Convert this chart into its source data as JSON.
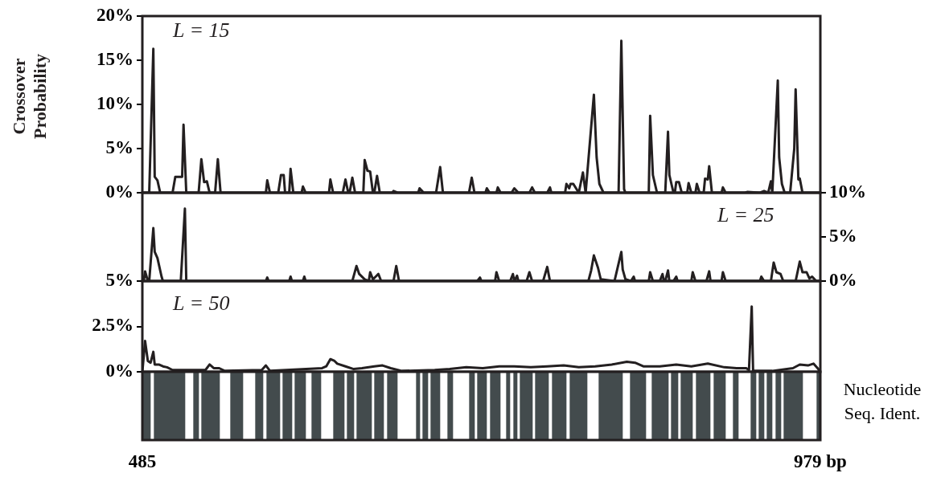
{
  "chart_data": [
    {
      "type": "line",
      "ylabel": "Crossover Probability",
      "annotations": [
        "L = 15"
      ],
      "xlim": [
        485,
        979
      ],
      "ylim": [
        0,
        20
      ],
      "yticks": [
        {
          "value": 0,
          "label": "0%"
        },
        {
          "value": 5,
          "label": "5%"
        },
        {
          "value": 10,
          "label": "10%"
        },
        {
          "value": 15,
          "label": "15%"
        },
        {
          "value": 20,
          "label": "20%"
        }
      ],
      "tick_labels": "y",
      "series": [
        {
          "color": "#231f20",
          "x": [
            485,
            490,
            493,
            494,
            496,
            498,
            507,
            509,
            511,
            514,
            515,
            517,
            526,
            528,
            530,
            532,
            534,
            538,
            540,
            542,
            575,
            576,
            578,
            584,
            586,
            588,
            589,
            592,
            593,
            595,
            601,
            602,
            604,
            621,
            622,
            624,
            631,
            633,
            635,
            636,
            638,
            640,
            646,
            647,
            649,
            651,
            653,
            654,
            656,
            658,
            667,
            668,
            671,
            686,
            687,
            690,
            699,
            702,
            704,
            723,
            725,
            727,
            735,
            736,
            738,
            743,
            744,
            746,
            754,
            756,
            759,
            767,
            769,
            771,
            780,
            782,
            783,
            793,
            794,
            796,
            797,
            799,
            803,
            806,
            808,
            814,
            816,
            818,
            821,
            832,
            834,
            836,
            837,
            854,
            855,
            857,
            860,
            866,
            868,
            869,
            872,
            873,
            874,
            876,
            878,
            882,
            883,
            885,
            888,
            889,
            891,
            894,
            895,
            897,
            898,
            900,
            907,
            908,
            910,
            924,
            926,
            935,
            938,
            941,
            943,
            944,
            948,
            949,
            951,
            953,
            957,
            960,
            961,
            963,
            964,
            966,
            979
          ],
          "values": [
            0,
            0,
            16.3,
            1.8,
            1.4,
            0,
            0,
            1.8,
            1.8,
            1.8,
            7.7,
            0,
            0,
            3.8,
            1.2,
            1.3,
            0,
            0,
            3.8,
            0,
            0,
            1.4,
            0,
            0,
            2,
            2,
            0,
            0,
            2.7,
            0,
            0,
            0.7,
            0,
            0,
            1.5,
            0,
            0,
            1.5,
            0,
            0,
            1.7,
            0,
            0,
            3.7,
            2.5,
            2.4,
            0,
            0,
            1.9,
            0,
            0,
            0.2,
            0,
            0,
            0.5,
            0,
            0,
            2.9,
            0,
            0,
            1.7,
            0,
            0,
            0.5,
            0,
            0,
            0.6,
            0,
            0,
            0.5,
            0,
            0,
            0.6,
            0,
            0,
            0.6,
            0,
            0,
            1,
            0.5,
            1,
            1,
            0,
            2.3,
            0,
            11.1,
            4,
            1,
            0,
            0,
            17.2,
            0.4,
            0,
            0,
            8.7,
            2,
            0,
            0,
            6.9,
            2,
            0,
            0,
            1.2,
            1.2,
            0,
            0,
            1.1,
            0,
            0,
            1,
            0,
            0,
            1.6,
            1.5,
            3,
            0,
            0,
            0.6,
            0,
            0,
            0.1,
            0,
            0.2,
            0,
            1.3,
            0,
            12.7,
            4,
            1,
            0,
            0,
            5,
            11.7,
            1.5,
            1.6,
            0,
            0
          ]
        }
      ]
    },
    {
      "type": "line",
      "annotations": [
        "L = 25"
      ],
      "xlim": [
        485,
        979
      ],
      "y2lim": [
        0,
        10
      ],
      "y2ticks": [
        {
          "value": 0,
          "label": "0%"
        },
        {
          "value": 5,
          "label": "5%"
        },
        {
          "value": 10,
          "label": "10%"
        }
      ],
      "tick_labels": "y",
      "series": [
        {
          "color": "#231f20",
          "axis": "y2",
          "x": [
            485,
            486,
            487,
            489,
            490,
            493,
            494,
            496,
            499,
            500,
            513,
            516,
            517,
            575,
            576,
            577,
            592,
            593,
            594,
            602,
            603,
            604,
            638,
            641,
            643,
            647,
            650,
            651,
            653,
            655,
            657,
            659,
            668,
            670,
            672,
            729,
            731,
            732,
            742,
            743,
            745,
            753,
            755,
            756,
            758,
            759,
            765,
            767,
            769,
            777,
            780,
            782,
            810,
            812,
            814,
            817,
            819,
            829,
            834,
            835,
            837,
            841,
            843,
            844,
            854,
            855,
            857,
            862,
            864,
            865,
            866,
            868,
            869,
            872,
            874,
            875,
            885,
            886,
            888,
            896,
            898,
            899,
            907,
            908,
            910,
            935,
            936,
            938,
            943,
            945,
            947,
            950,
            952,
            961,
            964,
            966,
            969,
            971,
            973,
            976,
            979
          ],
          "values": [
            0,
            0,
            1.1,
            0,
            0,
            6,
            3.3,
            2.6,
            0.5,
            0,
            0,
            8.2,
            0,
            0,
            0.4,
            0,
            0,
            0.5,
            0,
            0,
            0.5,
            0,
            0,
            1.7,
            0.8,
            0.2,
            0,
            1,
            0.2,
            0.5,
            0.8,
            0,
            0,
            1.7,
            0,
            0,
            0.4,
            0,
            0,
            1,
            0,
            0,
            0.8,
            0,
            0.6,
            0,
            0,
            1,
            0,
            0,
            1.6,
            0,
            0,
            1.2,
            2.9,
            1.5,
            0.2,
            0,
            3.3,
            1.3,
            0.2,
            0,
            0.5,
            0,
            0,
            1,
            0,
            0,
            0.8,
            0,
            0,
            1.2,
            0,
            0,
            0.5,
            0,
            0,
            1,
            0,
            0,
            1.1,
            0,
            0,
            1,
            0,
            0,
            0.5,
            0,
            0,
            2.1,
            1,
            0.8,
            0,
            0,
            2.2,
            1,
            1,
            0.3,
            0.5,
            0,
            0
          ]
        }
      ]
    },
    {
      "type": "line",
      "annotations": [
        "L = 50"
      ],
      "xlim": [
        485,
        979
      ],
      "ylim": [
        0,
        5
      ],
      "yticks": [
        {
          "value": 0,
          "label": "0%"
        },
        {
          "value": 2.5,
          "label": "2.5%"
        },
        {
          "value": 5,
          "label": "5%"
        }
      ],
      "tick_labels": "y",
      "series": [
        {
          "color": "#231f20",
          "x": [
            485,
            487,
            489,
            491,
            493,
            494,
            497,
            500,
            503,
            507,
            531,
            534,
            537,
            541,
            545,
            572,
            575,
            578,
            616,
            619,
            622,
            625,
            627,
            633,
            639,
            645,
            654,
            660,
            666,
            674,
            698,
            709,
            721,
            733,
            745,
            756,
            768,
            780,
            792,
            803,
            815,
            827,
            838,
            844,
            850,
            862,
            874,
            885,
            897,
            909,
            918,
            925,
            927,
            929,
            930,
            944,
            959,
            964,
            970,
            974,
            977,
            979
          ],
          "values": [
            0,
            1.7,
            0.6,
            0.5,
            1.1,
            0.4,
            0.4,
            0.3,
            0.25,
            0.1,
            0.1,
            0.4,
            0.2,
            0.2,
            0.05,
            0.1,
            0.35,
            0.05,
            0.2,
            0.3,
            0.7,
            0.6,
            0.45,
            0.3,
            0.15,
            0.2,
            0.3,
            0.35,
            0.2,
            0.05,
            0.1,
            0.15,
            0.25,
            0.2,
            0.3,
            0.3,
            0.25,
            0.3,
            0.35,
            0.25,
            0.3,
            0.4,
            0.55,
            0.5,
            0.3,
            0.3,
            0.4,
            0.3,
            0.45,
            0.25,
            0.2,
            0.2,
            0.1,
            3.6,
            0.05,
            0.05,
            0.2,
            0.4,
            0.35,
            0.45,
            0.2,
            0
          ]
        }
      ]
    },
    {
      "type": "bar",
      "orientation": "horizontal",
      "categories": [
        null
      ],
      "y2label": "Nucleotide Seq. Ident.",
      "xlim": [
        485,
        979
      ],
      "xticks": [
        {
          "value": 485,
          "label": "485"
        },
        {
          "value": 979,
          "label": "979 bp"
        }
      ],
      "tick_labels": "x",
      "series": [
        {
          "color": "#434b4d",
          "base": [
            485
          ],
          "values": [
            6
          ]
        },
        {
          "color": "#ffffff",
          "base": [
            491
          ],
          "values": [
            2
          ]
        },
        {
          "color": "#434b4d",
          "base": [
            493
          ],
          "values": [
            23
          ]
        },
        {
          "color": "#ffffff",
          "base": [
            516
          ],
          "values": [
            6
          ]
        },
        {
          "color": "#434b4d",
          "base": [
            522
          ],
          "values": [
            4
          ]
        },
        {
          "color": "#ffffff",
          "base": [
            526
          ],
          "values": [
            2
          ]
        },
        {
          "color": "#434b4d",
          "base": [
            528
          ],
          "values": [
            13
          ]
        },
        {
          "color": "#ffffff",
          "base": [
            541
          ],
          "values": [
            8
          ]
        },
        {
          "color": "#434b4d",
          "base": [
            549
          ],
          "values": [
            9
          ]
        },
        {
          "color": "#ffffff",
          "base": [
            558
          ],
          "values": [
            9
          ]
        },
        {
          "color": "#434b4d",
          "base": [
            567
          ],
          "values": [
            6
          ]
        },
        {
          "color": "#ffffff",
          "base": [
            573
          ],
          "values": [
            2
          ]
        },
        {
          "color": "#434b4d",
          "base": [
            575
          ],
          "values": [
            10
          ]
        },
        {
          "color": "#ffffff",
          "base": [
            585
          ],
          "values": [
            2
          ]
        },
        {
          "color": "#434b4d",
          "base": [
            587
          ],
          "values": [
            7
          ]
        },
        {
          "color": "#ffffff",
          "base": [
            594
          ],
          "values": [
            2
          ]
        },
        {
          "color": "#434b4d",
          "base": [
            596
          ],
          "values": [
            8
          ]
        },
        {
          "color": "#ffffff",
          "base": [
            604
          ],
          "values": [
            4
          ]
        },
        {
          "color": "#434b4d",
          "base": [
            608
          ],
          "values": [
            7
          ]
        },
        {
          "color": "#ffffff",
          "base": [
            615
          ],
          "values": [
            9
          ]
        },
        {
          "color": "#434b4d",
          "base": [
            624
          ],
          "values": [
            8
          ]
        },
        {
          "color": "#ffffff",
          "base": [
            632
          ],
          "values": [
            2
          ]
        },
        {
          "color": "#434b4d",
          "base": [
            634
          ],
          "values": [
            5
          ]
        },
        {
          "color": "#ffffff",
          "base": [
            639
          ],
          "values": [
            2
          ]
        },
        {
          "color": "#434b4d",
          "base": [
            641
          ],
          "values": [
            11
          ]
        },
        {
          "color": "#ffffff",
          "base": [
            652
          ],
          "values": [
            2
          ]
        },
        {
          "color": "#434b4d",
          "base": [
            654
          ],
          "values": [
            7
          ]
        },
        {
          "color": "#ffffff",
          "base": [
            661
          ],
          "values": [
            2
          ]
        },
        {
          "color": "#434b4d",
          "base": [
            663
          ],
          "values": [
            8
          ]
        },
        {
          "color": "#ffffff",
          "base": [
            671
          ],
          "values": [
            13
          ]
        },
        {
          "color": "#434b4d",
          "base": [
            684
          ],
          "values": [
            3
          ]
        },
        {
          "color": "#ffffff",
          "base": [
            687
          ],
          "values": [
            2
          ]
        },
        {
          "color": "#434b4d",
          "base": [
            689
          ],
          "values": [
            4
          ]
        },
        {
          "color": "#ffffff",
          "base": [
            693
          ],
          "values": [
            2
          ]
        },
        {
          "color": "#434b4d",
          "base": [
            695
          ],
          "values": [
            7
          ]
        },
        {
          "color": "#ffffff",
          "base": [
            702
          ],
          "values": [
            5
          ]
        },
        {
          "color": "#434b4d",
          "base": [
            707
          ],
          "values": [
            4
          ]
        },
        {
          "color": "#ffffff",
          "base": [
            711
          ],
          "values": [
            12
          ]
        },
        {
          "color": "#434b4d",
          "base": [
            723
          ],
          "values": [
            4
          ]
        },
        {
          "color": "#ffffff",
          "base": [
            727
          ],
          "values": [
            2
          ]
        },
        {
          "color": "#434b4d",
          "base": [
            729
          ],
          "values": [
            7
          ]
        },
        {
          "color": "#ffffff",
          "base": [
            736
          ],
          "values": [
            2
          ]
        },
        {
          "color": "#434b4d",
          "base": [
            738
          ],
          "values": [
            8
          ]
        },
        {
          "color": "#ffffff",
          "base": [
            746
          ],
          "values": [
            4
          ]
        },
        {
          "color": "#434b4d",
          "base": [
            750
          ],
          "values": [
            3
          ]
        },
        {
          "color": "#ffffff",
          "base": [
            753
          ],
          "values": [
            2
          ]
        },
        {
          "color": "#434b4d",
          "base": [
            755
          ],
          "values": [
            3
          ]
        },
        {
          "color": "#ffffff",
          "base": [
            758
          ],
          "values": [
            2
          ]
        },
        {
          "color": "#434b4d",
          "base": [
            760
          ],
          "values": [
            9
          ]
        },
        {
          "color": "#ffffff",
          "base": [
            769
          ],
          "values": [
            2
          ]
        },
        {
          "color": "#434b4d",
          "base": [
            771
          ],
          "values": [
            10
          ]
        },
        {
          "color": "#ffffff",
          "base": [
            781
          ],
          "values": [
            2
          ]
        },
        {
          "color": "#434b4d",
          "base": [
            783
          ],
          "values": [
            11
          ]
        },
        {
          "color": "#ffffff",
          "base": [
            794
          ],
          "values": [
            2
          ]
        },
        {
          "color": "#434b4d",
          "base": [
            796
          ],
          "values": [
            13
          ]
        },
        {
          "color": "#ffffff",
          "base": [
            809
          ],
          "values": [
            8
          ]
        },
        {
          "color": "#434b4d",
          "base": [
            817
          ],
          "values": [
            18
          ]
        },
        {
          "color": "#ffffff",
          "base": [
            835
          ],
          "values": [
            5
          ]
        },
        {
          "color": "#434b4d",
          "base": [
            840
          ],
          "values": [
            12
          ]
        },
        {
          "color": "#ffffff",
          "base": [
            852
          ],
          "values": [
            4
          ]
        },
        {
          "color": "#434b4d",
          "base": [
            856
          ],
          "values": [
            12
          ]
        },
        {
          "color": "#ffffff",
          "base": [
            868
          ],
          "values": [
            2
          ]
        },
        {
          "color": "#434b4d",
          "base": [
            870
          ],
          "values": [
            5
          ]
        },
        {
          "color": "#ffffff",
          "base": [
            875
          ],
          "values": [
            2
          ]
        },
        {
          "color": "#434b4d",
          "base": [
            877
          ],
          "values": [
            9
          ]
        },
        {
          "color": "#ffffff",
          "base": [
            886
          ],
          "values": [
            2
          ]
        },
        {
          "color": "#434b4d",
          "base": [
            888
          ],
          "values": [
            11
          ]
        },
        {
          "color": "#ffffff",
          "base": [
            899
          ],
          "values": [
            2
          ]
        },
        {
          "color": "#434b4d",
          "base": [
            901
          ],
          "values": [
            9
          ]
        },
        {
          "color": "#ffffff",
          "base": [
            910
          ],
          "values": [
            5
          ]
        },
        {
          "color": "#434b4d",
          "base": [
            915
          ],
          "values": [
            4
          ]
        },
        {
          "color": "#ffffff",
          "base": [
            919
          ],
          "values": [
            9
          ]
        },
        {
          "color": "#434b4d",
          "base": [
            928
          ],
          "values": [
            4
          ]
        },
        {
          "color": "#ffffff",
          "base": [
            932
          ],
          "values": [
            2
          ]
        },
        {
          "color": "#434b4d",
          "base": [
            934
          ],
          "values": [
            4
          ]
        },
        {
          "color": "#ffffff",
          "base": [
            938
          ],
          "values": [
            2
          ]
        },
        {
          "color": "#434b4d",
          "base": [
            940
          ],
          "values": [
            4
          ]
        },
        {
          "color": "#ffffff",
          "base": [
            944
          ],
          "values": [
            2
          ]
        },
        {
          "color": "#434b4d",
          "base": [
            946
          ],
          "values": [
            4
          ]
        },
        {
          "color": "#ffffff",
          "base": [
            950
          ],
          "values": [
            2
          ]
        },
        {
          "color": "#434b4d",
          "base": [
            952
          ],
          "values": [
            14
          ]
        },
        {
          "color": "#ffffff",
          "base": [
            966
          ],
          "values": [
            10
          ]
        },
        {
          "color": "#434b4d",
          "base": [
            976
          ],
          "values": [
            3
          ]
        }
      ]
    }
  ]
}
